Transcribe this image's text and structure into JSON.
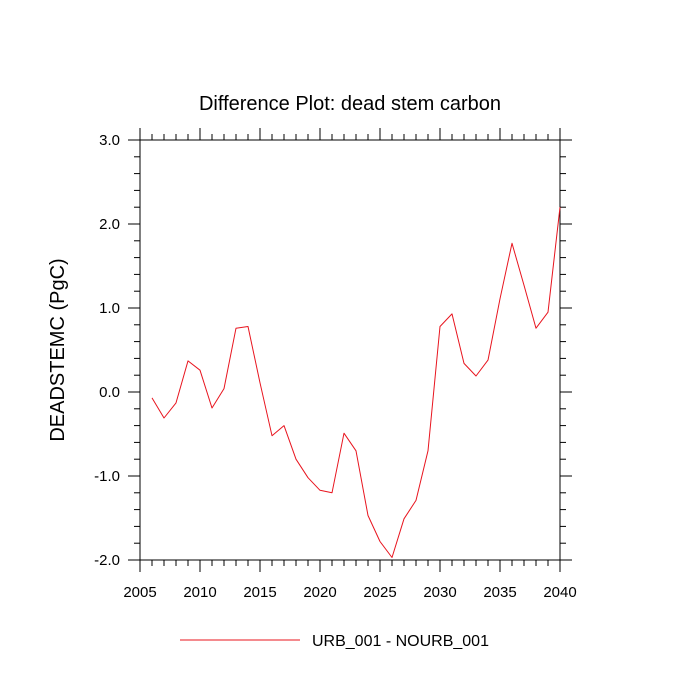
{
  "chart_data": {
    "type": "line",
    "title": "Difference Plot: dead stem carbon",
    "xlabel": "",
    "ylabel": "DEADSTEMC  (PgC)",
    "xlim": [
      2005,
      2040
    ],
    "ylim": [
      -2.0,
      3.0
    ],
    "xticks": [
      2005,
      2010,
      2015,
      2020,
      2025,
      2030,
      2035,
      2040
    ],
    "xtick_labels": [
      "2005",
      "2010",
      "2015",
      "2020",
      "2025",
      "2030",
      "2035",
      "2040"
    ],
    "yticks": [
      -2.0,
      -1.0,
      0.0,
      1.0,
      2.0,
      3.0
    ],
    "ytick_labels": [
      "-2.0",
      "-1.0",
      "0.0",
      "1.0",
      "2.0",
      "3.0"
    ],
    "grid": false,
    "legend_position": "bottom",
    "series": [
      {
        "name": "URB_001 - NOURB_001",
        "color": "#e8141e",
        "x": [
          2006,
          2007,
          2008,
          2009,
          2010,
          2011,
          2012,
          2013,
          2014,
          2015,
          2016,
          2017,
          2018,
          2019,
          2020,
          2021,
          2022,
          2023,
          2024,
          2025,
          2026,
          2027,
          2028,
          2029,
          2030,
          2031,
          2032,
          2033,
          2034,
          2035,
          2036,
          2037,
          2038,
          2039,
          2040
        ],
        "values": [
          -0.07,
          -0.31,
          -0.13,
          0.37,
          0.26,
          -0.19,
          0.04,
          0.76,
          0.78,
          0.11,
          -0.52,
          -0.4,
          -0.8,
          -1.02,
          -1.17,
          -1.2,
          -0.49,
          -0.7,
          -1.47,
          -1.78,
          -1.97,
          -1.51,
          -1.29,
          -0.7,
          0.78,
          0.93,
          0.34,
          0.19,
          0.38,
          1.11,
          1.77,
          1.27,
          0.76,
          0.95,
          2.2
        ]
      }
    ]
  }
}
